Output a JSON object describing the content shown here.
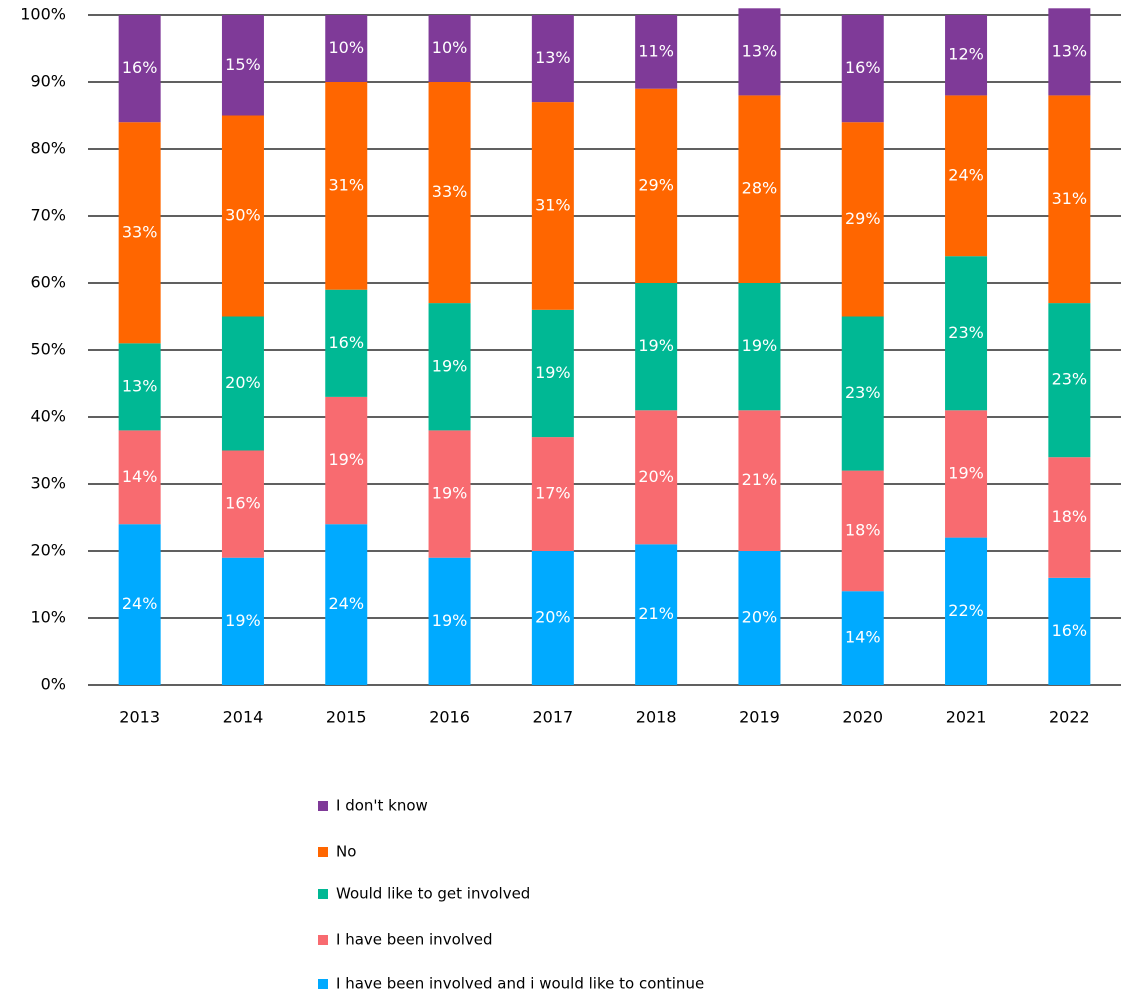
{
  "chart_data": {
    "type": "stacked_bar",
    "categories": [
      "2013",
      "2014",
      "2015",
      "2016",
      "2017",
      "2018",
      "2019",
      "2020",
      "2021",
      "2022"
    ],
    "series": [
      {
        "name": "I have been involved and i would like to continue",
        "color": "#00aaff",
        "values": [
          24,
          19,
          24,
          19,
          20,
          21,
          20,
          14,
          22,
          16
        ],
        "value_labels": [
          "24%",
          "19%",
          "24%",
          "19%",
          "20%",
          "21%",
          "20%",
          "14%",
          "22%",
          "16%"
        ]
      },
      {
        "name": "I have been involved",
        "color": "#f86b70",
        "values": [
          14,
          16,
          19,
          19,
          17,
          20,
          21,
          18,
          19,
          18
        ],
        "value_labels": [
          "14%",
          "16%",
          "19%",
          "19%",
          "17%",
          "20%",
          "21%",
          "18%",
          "19%",
          "18%"
        ]
      },
      {
        "name": "Would like to get involved",
        "color": "#00b894",
        "values": [
          13,
          20,
          16,
          19,
          19,
          19,
          19,
          23,
          23,
          23
        ],
        "value_labels": [
          "13%",
          "20%",
          "16%",
          "19%",
          "19%",
          "19%",
          "19%",
          "23%",
          "23%",
          "23%"
        ]
      },
      {
        "name": "No",
        "color": "#ff6600",
        "values": [
          33,
          30,
          31,
          33,
          31,
          29,
          28,
          29,
          24,
          31
        ],
        "value_labels": [
          "33%",
          "30%",
          "31%",
          "33%",
          "31%",
          "29%",
          "28%",
          "29%",
          "24%",
          "31%"
        ]
      },
      {
        "name": "I don't know",
        "color": "#7f3a98",
        "values": [
          16,
          15,
          10,
          10,
          13,
          11,
          13,
          16,
          12,
          13
        ],
        "value_labels": [
          "16%",
          "15%",
          "10%",
          "10%",
          "13%",
          "11%",
          "13%",
          "16%",
          "12%",
          "13%"
        ]
      }
    ],
    "ylim": [
      0,
      100
    ],
    "yticks": [
      {
        "value": 0,
        "label": "0%"
      },
      {
        "value": 10,
        "label": "10%"
      },
      {
        "value": 20,
        "label": "20%"
      },
      {
        "value": 30,
        "label": "30%"
      },
      {
        "value": 40,
        "label": "40%"
      },
      {
        "value": 50,
        "label": "50%"
      },
      {
        "value": 60,
        "label": "60%"
      },
      {
        "value": 70,
        "label": "70%"
      },
      {
        "value": 80,
        "label": "80%"
      },
      {
        "value": 90,
        "label": "90%"
      },
      {
        "value": 100,
        "label": "100%"
      }
    ],
    "grid": true,
    "legend": "bottom"
  }
}
